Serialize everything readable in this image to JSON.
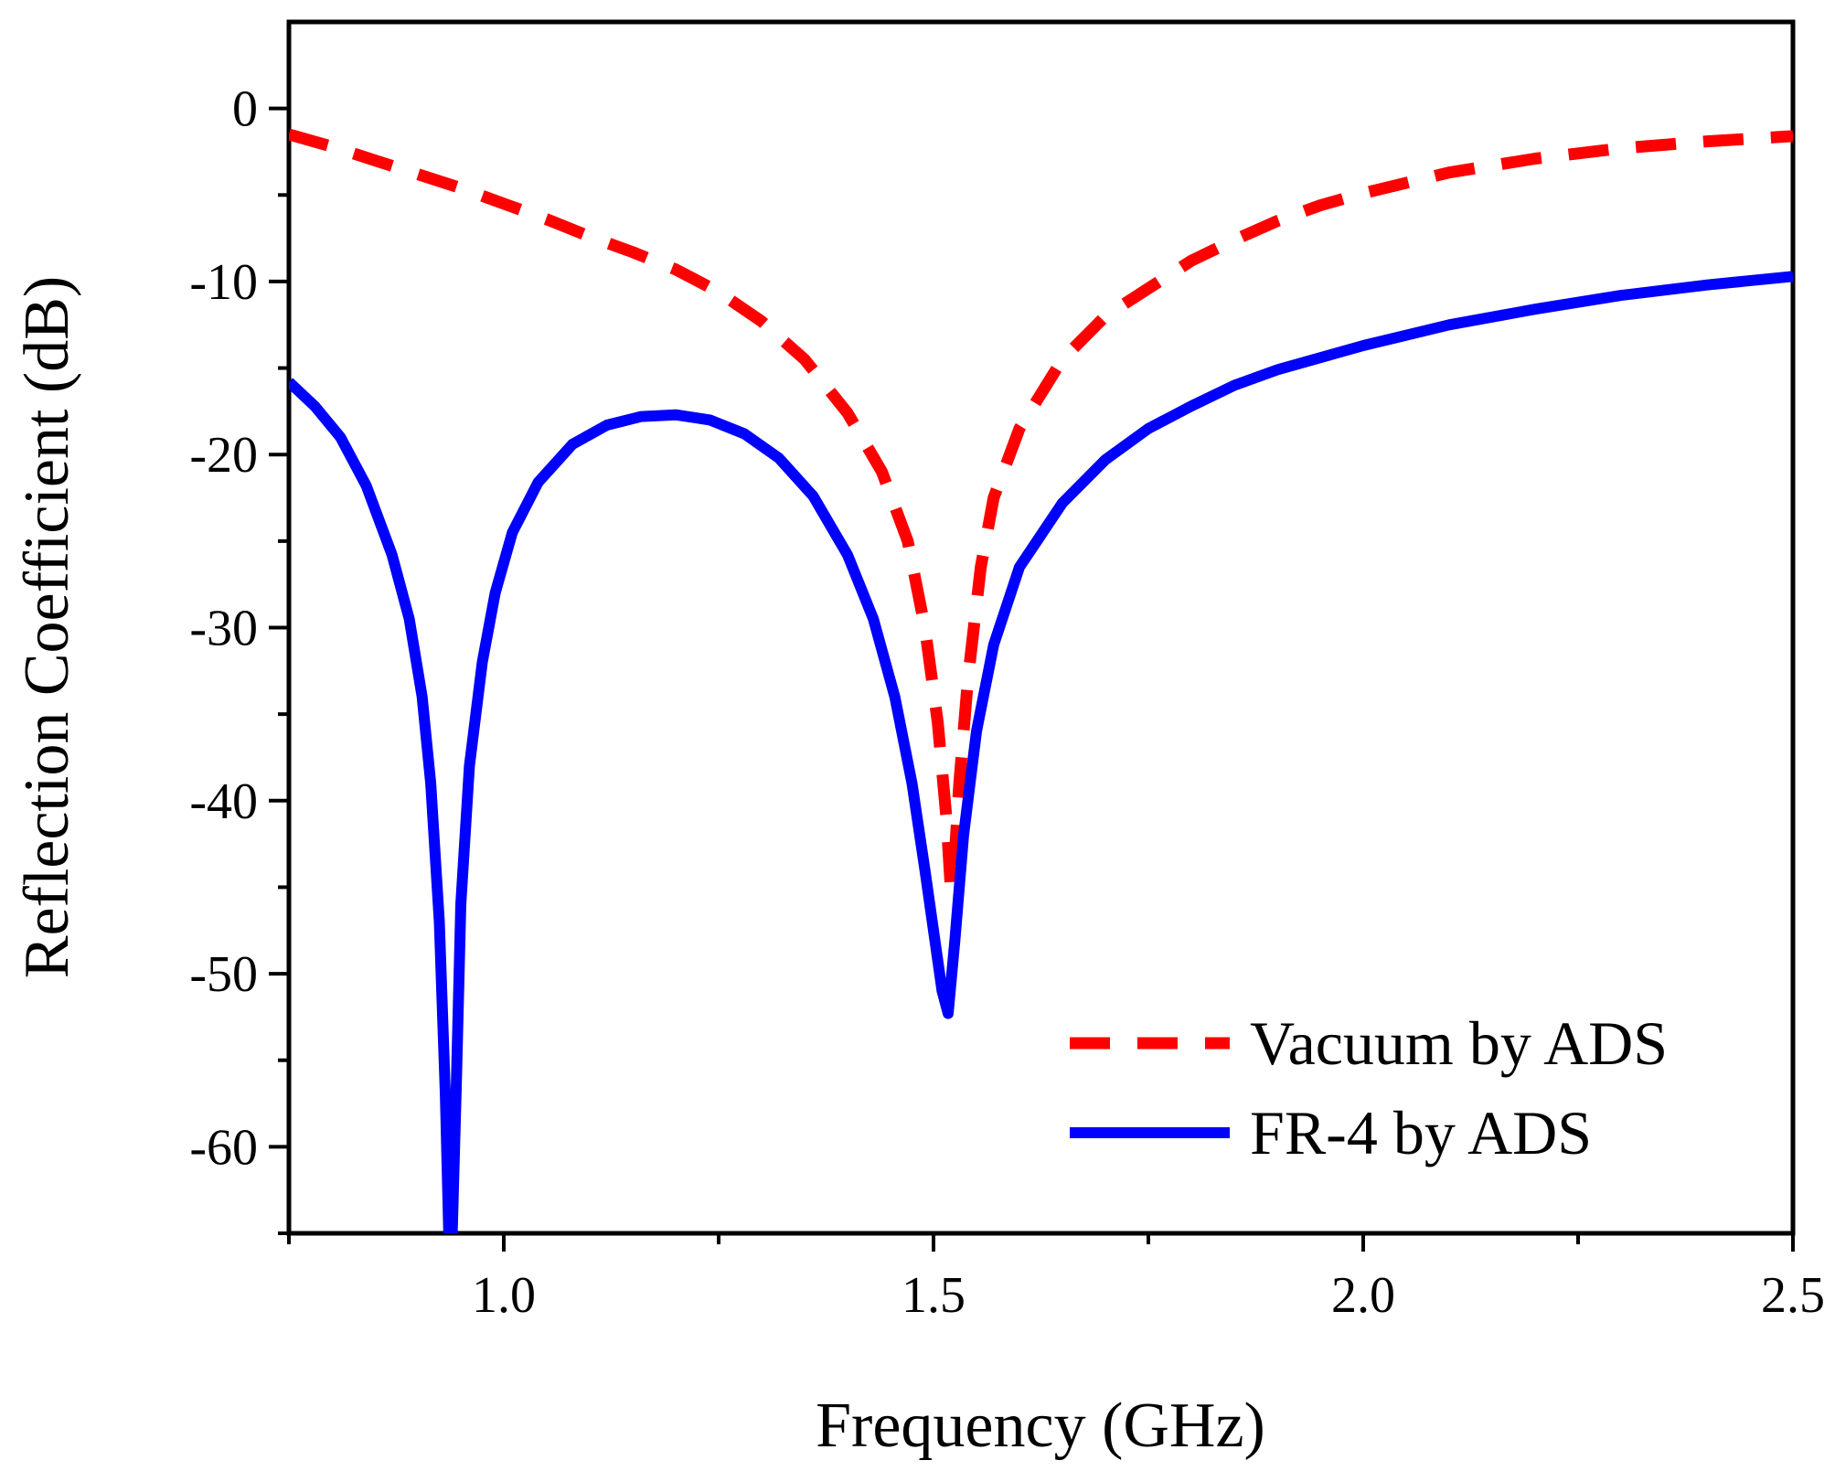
{
  "chart_data": {
    "type": "line",
    "title": "",
    "xlabel": "Frequency (GHz)",
    "ylabel": "Reflection Coefficient (dB)",
    "xlim": [
      0.75,
      2.5
    ],
    "ylim": [
      -65,
      5
    ],
    "grid": false,
    "legend_position": "bottom-right",
    "x_ticks": [
      {
        "value": 1.0,
        "label": "1.0"
      },
      {
        "value": 1.5,
        "label": "1.5"
      },
      {
        "value": 2.0,
        "label": "2.0"
      },
      {
        "value": 2.5,
        "label": "2.5"
      }
    ],
    "x_minor_ticks": [
      0.75,
      1.25,
      1.75,
      2.25
    ],
    "y_ticks": [
      {
        "value": 0,
        "label": "0"
      },
      {
        "value": -10,
        "label": "-10"
      },
      {
        "value": -20,
        "label": "-20"
      },
      {
        "value": -30,
        "label": "-30"
      },
      {
        "value": -40,
        "label": "-40"
      },
      {
        "value": -50,
        "label": "-50"
      },
      {
        "value": -60,
        "label": "-60"
      }
    ],
    "y_minor_ticks": [
      -65,
      -55,
      -45,
      -35,
      -25,
      -15,
      -5
    ],
    "series": [
      {
        "name": "Vacuum by ADS",
        "color": "#ff0000",
        "style": "dashed",
        "points": [
          [
            0.75,
            -1.5
          ],
          [
            0.8,
            -2.2
          ],
          [
            0.85,
            -3.0
          ],
          [
            0.9,
            -3.8
          ],
          [
            0.95,
            -4.6
          ],
          [
            1.0,
            -5.5
          ],
          [
            1.05,
            -6.4
          ],
          [
            1.1,
            -7.4
          ],
          [
            1.15,
            -8.3
          ],
          [
            1.2,
            -9.3
          ],
          [
            1.25,
            -10.6
          ],
          [
            1.3,
            -12.3
          ],
          [
            1.35,
            -14.5
          ],
          [
            1.4,
            -17.6
          ],
          [
            1.44,
            -21.0
          ],
          [
            1.47,
            -25.0
          ],
          [
            1.49,
            -30.0
          ],
          [
            1.505,
            -35.5
          ],
          [
            1.515,
            -41.0
          ],
          [
            1.52,
            -45.0
          ],
          [
            1.525,
            -43.0
          ],
          [
            1.53,
            -39.0
          ],
          [
            1.54,
            -33.0
          ],
          [
            1.555,
            -26.5
          ],
          [
            1.57,
            -22.5
          ],
          [
            1.6,
            -18.5
          ],
          [
            1.65,
            -14.5
          ],
          [
            1.7,
            -12.0
          ],
          [
            1.75,
            -10.4
          ],
          [
            1.8,
            -8.8
          ],
          [
            1.85,
            -7.6
          ],
          [
            1.9,
            -6.5
          ],
          [
            1.95,
            -5.6
          ],
          [
            2.0,
            -4.9
          ],
          [
            2.1,
            -3.7
          ],
          [
            2.2,
            -2.9
          ],
          [
            2.3,
            -2.3
          ],
          [
            2.4,
            -1.9
          ],
          [
            2.5,
            -1.6
          ]
        ]
      },
      {
        "name": "FR-4 by ADS",
        "color": "#0000ff",
        "style": "solid",
        "points": [
          [
            0.75,
            -15.8
          ],
          [
            0.78,
            -17.2
          ],
          [
            0.81,
            -19.0
          ],
          [
            0.84,
            -21.8
          ],
          [
            0.87,
            -25.8
          ],
          [
            0.89,
            -29.5
          ],
          [
            0.905,
            -34.0
          ],
          [
            0.915,
            -39.0
          ],
          [
            0.925,
            -47.0
          ],
          [
            0.932,
            -57.0
          ],
          [
            0.936,
            -65.0
          ],
          [
            0.94,
            -65.0
          ],
          [
            0.945,
            -56.0
          ],
          [
            0.95,
            -46.0
          ],
          [
            0.96,
            -38.0
          ],
          [
            0.975,
            -32.0
          ],
          [
            0.99,
            -28.0
          ],
          [
            1.01,
            -24.5
          ],
          [
            1.04,
            -21.6
          ],
          [
            1.08,
            -19.4
          ],
          [
            1.12,
            -18.3
          ],
          [
            1.16,
            -17.8
          ],
          [
            1.2,
            -17.7
          ],
          [
            1.24,
            -18.0
          ],
          [
            1.28,
            -18.8
          ],
          [
            1.32,
            -20.2
          ],
          [
            1.36,
            -22.4
          ],
          [
            1.4,
            -25.8
          ],
          [
            1.43,
            -29.5
          ],
          [
            1.455,
            -34.0
          ],
          [
            1.475,
            -39.0
          ],
          [
            1.49,
            -44.0
          ],
          [
            1.5,
            -47.5
          ],
          [
            1.51,
            -51.0
          ],
          [
            1.517,
            -52.3
          ],
          [
            1.525,
            -48.0
          ],
          [
            1.535,
            -42.0
          ],
          [
            1.55,
            -36.0
          ],
          [
            1.57,
            -31.0
          ],
          [
            1.6,
            -26.5
          ],
          [
            1.65,
            -22.8
          ],
          [
            1.7,
            -20.3
          ],
          [
            1.75,
            -18.5
          ],
          [
            1.8,
            -17.2
          ],
          [
            1.85,
            -16.0
          ],
          [
            1.9,
            -15.1
          ],
          [
            2.0,
            -13.7
          ],
          [
            2.1,
            -12.5
          ],
          [
            2.2,
            -11.6
          ],
          [
            2.3,
            -10.8
          ],
          [
            2.4,
            -10.2
          ],
          [
            2.5,
            -9.7
          ]
        ]
      }
    ]
  }
}
